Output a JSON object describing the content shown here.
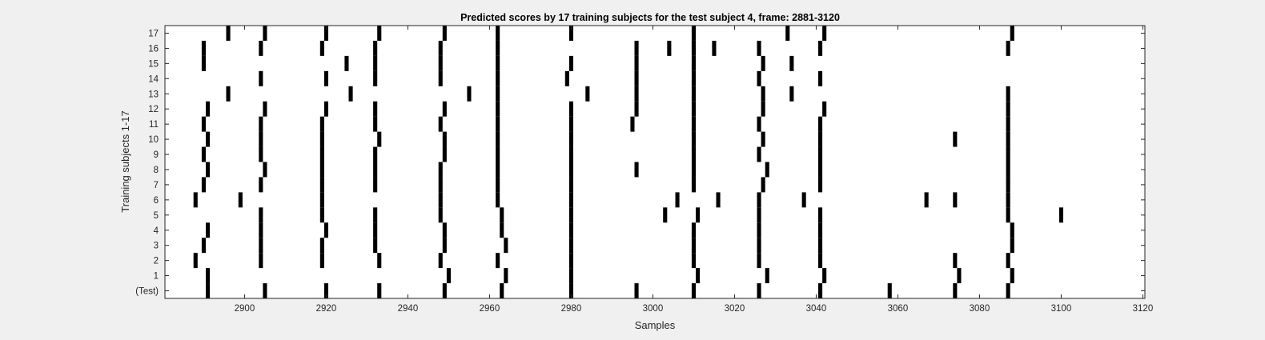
{
  "chart_data": {
    "type": "heatmap",
    "title": "Predicted scores by 17 training subjects for the test subject 4, frame: 2881-3120",
    "xlabel": "Samples",
    "ylabel": "Training subjects 1-17",
    "xlim": [
      2881,
      3120
    ],
    "x_ticks": [
      2900,
      2920,
      2940,
      2960,
      2980,
      3000,
      3020,
      3040,
      3060,
      3080,
      3100,
      3120
    ],
    "y_tick_labels": [
      "(Test)",
      "1",
      "2",
      "3",
      "4",
      "5",
      "6",
      "7",
      "8",
      "9",
      "10",
      "11",
      "12",
      "13",
      "14",
      "15",
      "16",
      "17"
    ],
    "grid": false,
    "legend": "none",
    "colors": {
      "mark": "#000000",
      "background": "#ffffff",
      "figure": "#f0f0f0"
    },
    "rows": [
      {
        "label": "(Test)",
        "samples": [
          2891,
          2905,
          2920,
          2933,
          2949,
          2963,
          2980,
          2996,
          3010,
          3026,
          3041,
          3058,
          3074,
          3087
        ]
      },
      {
        "label": "1",
        "samples": [
          2891,
          2950,
          2964,
          2980,
          3011,
          3028,
          3042,
          3075,
          3088
        ]
      },
      {
        "label": "2",
        "samples": [
          2888,
          2904,
          2919,
          2933,
          2948,
          2962,
          2980,
          3010,
          3026,
          3041,
          3074,
          3087
        ]
      },
      {
        "label": "3",
        "samples": [
          2890,
          2904,
          2919,
          2932,
          2949,
          2964,
          2980,
          3010,
          3026,
          3041,
          3088
        ]
      },
      {
        "label": "4",
        "samples": [
          2891,
          2904,
          2920,
          2932,
          2949,
          2963,
          2980,
          3010,
          3026,
          3041,
          3088
        ]
      },
      {
        "label": "5",
        "samples": [
          2904,
          2919,
          2932,
          2948,
          2963,
          2980,
          3003,
          3011,
          3026,
          3041,
          3087,
          3100
        ]
      },
      {
        "label": "6",
        "samples": [
          2888,
          2899,
          2919,
          2948,
          2962,
          2980,
          3006,
          3016,
          3026,
          3037,
          3067,
          3074,
          3087
        ]
      },
      {
        "label": "7",
        "samples": [
          2890,
          2904,
          2919,
          2932,
          2948,
          2962,
          2980,
          3010,
          3027,
          3041,
          3087
        ]
      },
      {
        "label": "8",
        "samples": [
          2891,
          2905,
          2919,
          2932,
          2948,
          2962,
          2980,
          2996,
          3010,
          3028,
          3041,
          3087
        ]
      },
      {
        "label": "9",
        "samples": [
          2890,
          2904,
          2919,
          2932,
          2949,
          2962,
          2980,
          3010,
          3026,
          3041,
          3087
        ]
      },
      {
        "label": "10",
        "samples": [
          2891,
          2904,
          2919,
          2933,
          2949,
          2962,
          2980,
          3010,
          3027,
          3041,
          3074,
          3087
        ]
      },
      {
        "label": "11",
        "samples": [
          2890,
          2904,
          2919,
          2932,
          2948,
          2962,
          2980,
          2995,
          3010,
          3026,
          3041,
          3087
        ]
      },
      {
        "label": "12",
        "samples": [
          2891,
          2905,
          2920,
          2932,
          2949,
          2962,
          2980,
          2996,
          3010,
          3027,
          3042,
          3087
        ]
      },
      {
        "label": "13",
        "samples": [
          2896,
          2926,
          2955,
          2962,
          2984,
          2996,
          3010,
          3027,
          3034,
          3087
        ]
      },
      {
        "label": "14",
        "samples": [
          2904,
          2920,
          2932,
          2948,
          2962,
          2979,
          2996,
          3010,
          3026,
          3041
        ]
      },
      {
        "label": "15",
        "samples": [
          2890,
          2925,
          2932,
          2948,
          2962,
          2980,
          2996,
          3010,
          3027,
          3034
        ]
      },
      {
        "label": "16",
        "samples": [
          2890,
          2904,
          2919,
          2932,
          2948,
          2962,
          2996,
          3004,
          3010,
          3015,
          3026,
          3041,
          3087
        ]
      },
      {
        "label": "17",
        "samples": [
          2896,
          2905,
          2920,
          2933,
          2949,
          2962,
          2980,
          3010,
          3033,
          3042,
          3088
        ]
      }
    ]
  }
}
